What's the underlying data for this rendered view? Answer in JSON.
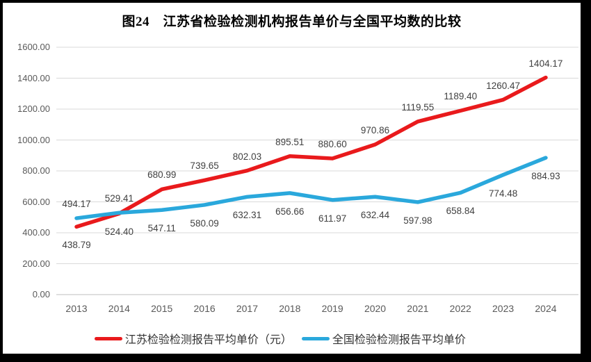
{
  "chart_data": {
    "type": "line",
    "title": "图24　江苏省检验检测机构报告单价与全国平均数的比较",
    "categories": [
      "2013",
      "2014",
      "2015",
      "2016",
      "2017",
      "2018",
      "2019",
      "2020",
      "2021",
      "2022",
      "2023",
      "2024"
    ],
    "series": [
      {
        "name": "江苏检验检测报告平均单价（元）",
        "color": "#e91a1c",
        "values": [
          438.79,
          524.4,
          680.99,
          739.65,
          802.03,
          895.51,
          880.6,
          970.86,
          1119.55,
          1189.4,
          1260.47,
          1404.17
        ],
        "label_side": [
          "below",
          "below",
          "above",
          "above",
          "above",
          "above",
          "above",
          "above",
          "above",
          "above",
          "above",
          "above"
        ]
      },
      {
        "name": "全国检验检测报告平均单价",
        "color": "#2aa8dc",
        "values": [
          494.17,
          529.41,
          547.11,
          580.09,
          632.31,
          656.66,
          611.97,
          632.44,
          597.98,
          658.84,
          774.48,
          884.93
        ],
        "label_side": [
          "above",
          "above",
          "below",
          "below",
          "below",
          "below",
          "below",
          "below",
          "below",
          "below",
          "below",
          "below"
        ]
      }
    ],
    "xlabel": "",
    "ylabel": "",
    "ylim": [
      0,
      1600
    ],
    "ytick_step": 200,
    "ytick_labels": [
      "0.00",
      "200.00",
      "400.00",
      "600.00",
      "800.00",
      "1000.00",
      "1200.00",
      "1400.00",
      "1600.00"
    ],
    "grid": true,
    "legend_position": "bottom"
  },
  "colors": {
    "grid_line": "#d9d9d9",
    "zero_axis_line": "#bfbfbf",
    "axis_text": "#595959",
    "data_label_text": "#404040",
    "series_red": "#e91a1c",
    "series_blue": "#2aa8dc",
    "frame": "#000000",
    "background": "#ffffff"
  }
}
